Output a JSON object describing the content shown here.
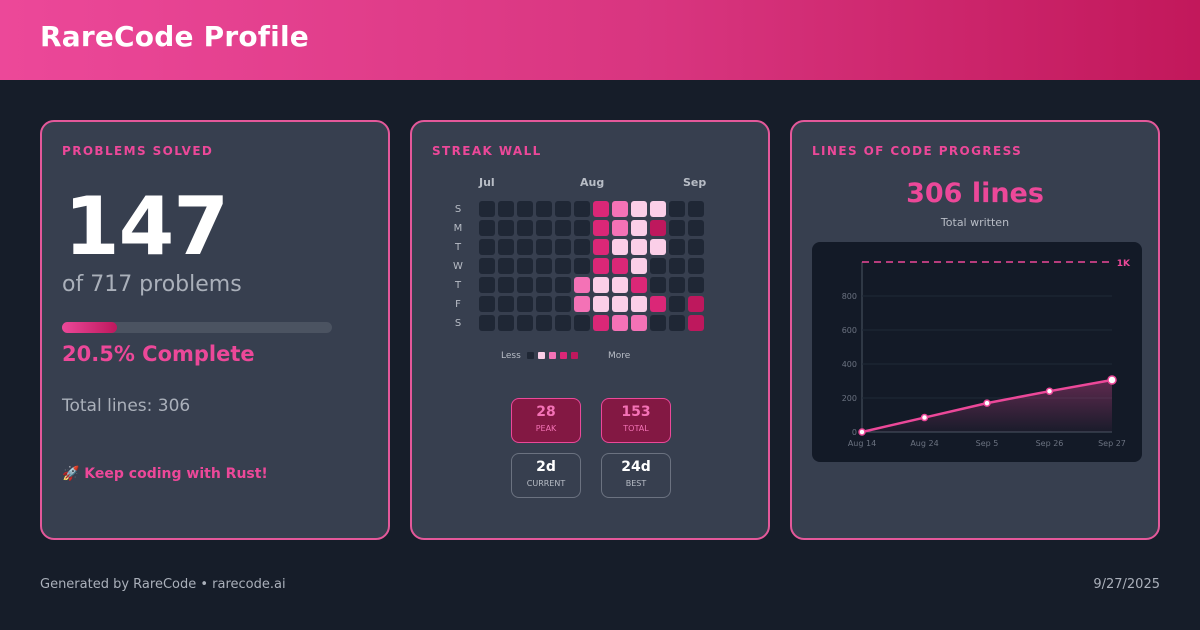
{
  "header": {
    "title": "RareCode Profile"
  },
  "problems": {
    "title": "PROBLEMS SOLVED",
    "solved": "147",
    "of_text": "of 717 problems",
    "progress": 0.205,
    "percent_text": "20.5% Complete",
    "total_lines_text": "Total lines: 306",
    "motivation": "🚀 Keep coding with Rust!"
  },
  "streak": {
    "title": "STREAK WALL",
    "months": [
      "Jul",
      "Aug",
      "Sep"
    ],
    "days": [
      "S",
      "M",
      "T",
      "W",
      "T",
      "F",
      "S"
    ],
    "levels_note": "grid[col][row], 0=empty .. 4=darkest",
    "grid": [
      [
        0,
        0,
        0,
        0,
        0,
        0,
        0
      ],
      [
        0,
        0,
        0,
        0,
        0,
        0,
        0
      ],
      [
        0,
        0,
        0,
        0,
        0,
        0,
        0
      ],
      [
        0,
        0,
        0,
        0,
        0,
        0,
        0
      ],
      [
        0,
        0,
        0,
        0,
        0,
        0,
        0
      ],
      [
        0,
        0,
        0,
        0,
        2,
        2,
        0
      ],
      [
        3,
        3,
        3,
        3,
        1,
        1,
        3
      ],
      [
        2,
        2,
        1,
        3,
        1,
        1,
        2
      ],
      [
        1,
        1,
        1,
        1,
        3,
        1,
        2
      ],
      [
        1,
        4,
        1,
        0,
        0,
        3,
        0
      ],
      [
        0,
        0,
        0,
        0,
        0,
        0,
        0
      ],
      [
        0,
        0,
        0,
        0,
        0,
        4,
        4
      ]
    ],
    "legend_less": "Less",
    "legend_more": "More",
    "colors": [
      "#1f2735",
      "#fbcfe8",
      "#f472b6",
      "#db2777",
      "#be185d"
    ],
    "stats": [
      {
        "value": "28",
        "label": "PEAK"
      },
      {
        "value": "153",
        "label": "TOTAL"
      },
      {
        "value": "2d",
        "label": "CURRENT"
      },
      {
        "value": "24d",
        "label": "BEST"
      }
    ]
  },
  "loc": {
    "title": "LINES OF CODE PROGRESS",
    "big": "306 lines",
    "sub": "Total written"
  },
  "chart_data": {
    "type": "area",
    "goal": 1000,
    "goal_label": "1K",
    "ylim": [
      0,
      1000
    ],
    "yticks": [
      "0",
      "200",
      "400",
      "600",
      "800"
    ],
    "xticks": [
      "Aug 14",
      "Aug 24",
      "Sep 5",
      "Sep 26",
      "Sep 27"
    ],
    "x": [
      "Aug 14",
      "Aug 24",
      "Sep 5",
      "Sep 26",
      "Sep 27"
    ],
    "values": [
      0,
      85,
      170,
      240,
      306
    ]
  },
  "footer": {
    "left": "Generated by RareCode • rarecode.ai",
    "right": "9/27/2025"
  }
}
